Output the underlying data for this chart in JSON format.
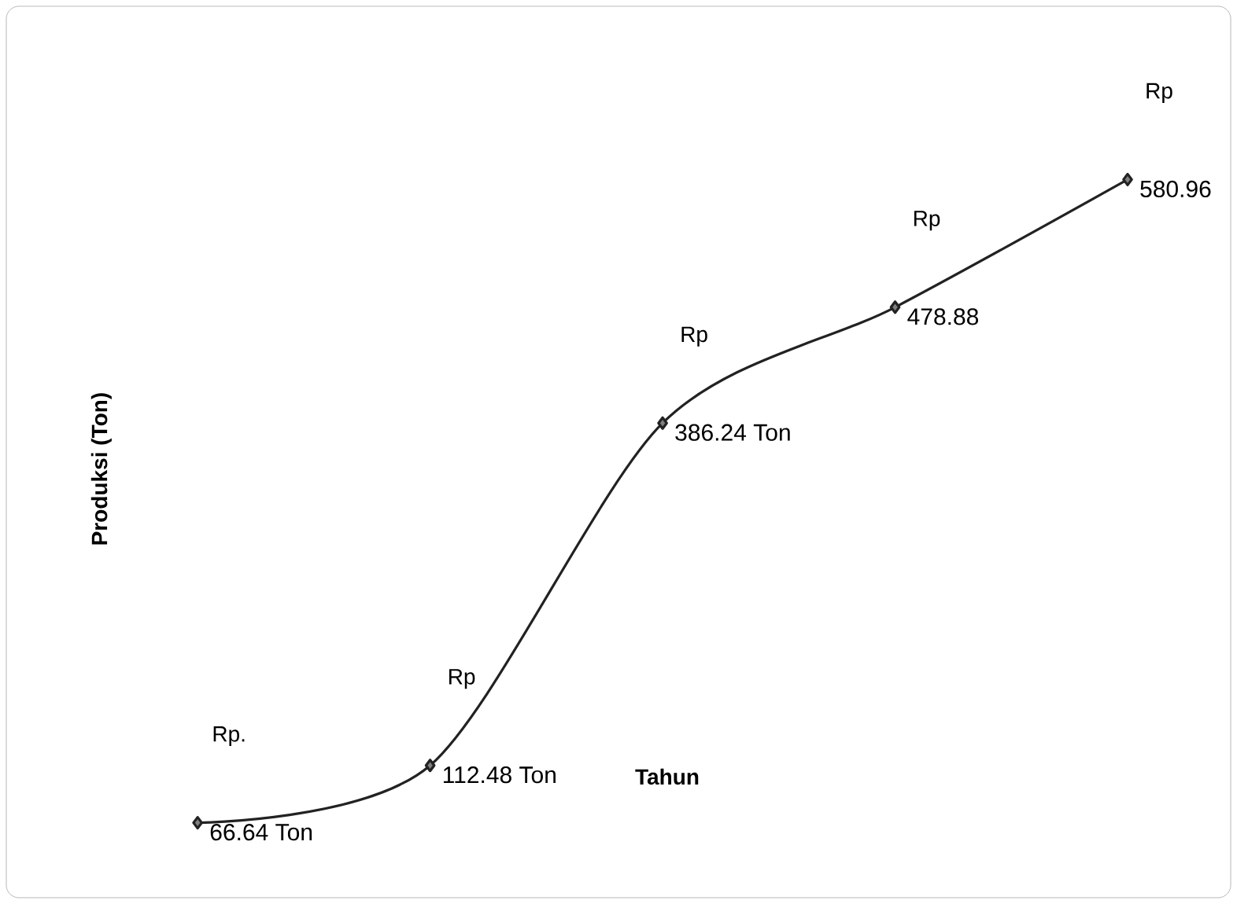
{
  "chart_data": {
    "type": "line",
    "xlabel": "Tahun",
    "ylabel": "Produksi (Ton)",
    "categories": [
      null,
      null,
      null,
      null,
      null
    ],
    "series": [
      {
        "color": "#222222",
        "values": [
          66.64,
          112.48,
          386.24,
          478.88,
          580.96
        ],
        "value_labels": [
          "66.64 Ton",
          "112.48 Ton",
          "386.24 Ton",
          "478.88",
          "580.96"
        ]
      }
    ],
    "annotations": [
      "Rp.",
      "Rp",
      "Rp",
      "Rp",
      "Rp"
    ],
    "marker": "diamond",
    "line_style": "solid"
  }
}
